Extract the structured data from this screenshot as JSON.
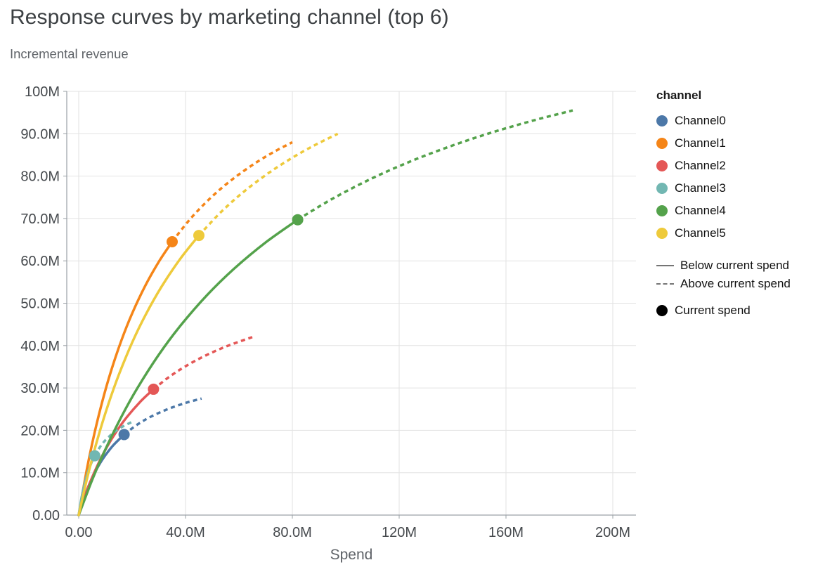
{
  "header": {
    "title": "Response curves by marketing channel (top 6)",
    "subtitle": "Incremental revenue"
  },
  "legend": {
    "header": "channel",
    "channels": [
      {
        "label": "Channel0",
        "color": "#4c78a8"
      },
      {
        "label": "Channel1",
        "color": "#f58518"
      },
      {
        "label": "Channel2",
        "color": "#e45756"
      },
      {
        "label": "Channel3",
        "color": "#72b7b2"
      },
      {
        "label": "Channel4",
        "color": "#54a24b"
      },
      {
        "label": "Channel5",
        "color": "#eeca3b"
      }
    ],
    "line_styles": [
      {
        "label": "Below current spend",
        "dash": "solid"
      },
      {
        "label": "Above current spend",
        "dash": "dashed"
      }
    ],
    "point_marker": {
      "label": "Current spend",
      "color": "#000000"
    }
  },
  "style": {
    "grid_color": "#e2e2e2",
    "axis_color": "#9aa0a6",
    "tick_label_color": "#45494d",
    "axis_title_color": "#5f6368"
  },
  "chart_data": {
    "type": "line",
    "title": "Response curves by marketing channel (top 6)",
    "subtitle": "Incremental revenue",
    "xlabel": "Spend",
    "ylabel": "Incremental revenue",
    "units": "millions",
    "xlim": [
      0,
      200
    ],
    "ylim": [
      0,
      100
    ],
    "grid": true,
    "legend_position": "right",
    "x_ticks": [
      {
        "value": 0,
        "label": "0.00"
      },
      {
        "value": 40,
        "label": "40.0M"
      },
      {
        "value": 80,
        "label": "80.0M"
      },
      {
        "value": 120,
        "label": "120M"
      },
      {
        "value": 160,
        "label": "160M"
      },
      {
        "value": 200,
        "label": "200M"
      }
    ],
    "y_ticks": [
      {
        "value": 0,
        "label": "0.00"
      },
      {
        "value": 10,
        "label": "10.0M"
      },
      {
        "value": 20,
        "label": "20.0M"
      },
      {
        "value": 30,
        "label": "30.0M"
      },
      {
        "value": 40,
        "label": "40.0M"
      },
      {
        "value": 50,
        "label": "50.0M"
      },
      {
        "value": 60,
        "label": "60.0M"
      },
      {
        "value": 70,
        "label": "70.0M"
      },
      {
        "value": 80,
        "label": "80.0M"
      },
      {
        "value": 90,
        "label": "90.0M"
      },
      {
        "value": 100,
        "label": "100M"
      }
    ],
    "series": [
      {
        "name": "Channel0",
        "color": "#4c78a8",
        "current_spend": 17,
        "current_revenue": 19.0,
        "x": [
          0,
          2,
          4,
          6,
          8,
          10,
          13,
          17,
          22,
          27,
          33,
          40,
          46
        ],
        "y": [
          0,
          4.06,
          7.33,
          10.0,
          12.25,
          14.14,
          16.51,
          19.0,
          21.38,
          23.21,
          24.92,
          26.46,
          27.5
        ]
      },
      {
        "name": "Channel1",
        "color": "#f58518",
        "current_spend": 35,
        "current_revenue": 64.51,
        "x": [
          0,
          3,
          6,
          9,
          12,
          16,
          20,
          25,
          30,
          35,
          42,
          50,
          58,
          66,
          73,
          80
        ],
        "y": [
          0,
          10.64,
          19.58,
          27.2,
          33.78,
          41.25,
          47.57,
          54.22,
          59.78,
          64.51,
          70.05,
          75.22,
          79.46,
          83.01,
          85.68,
          88.0
        ]
      },
      {
        "name": "Channel2",
        "color": "#e45756",
        "current_spend": 28,
        "current_revenue": 29.7,
        "x": [
          0,
          3,
          6,
          10,
          14,
          18,
          23,
          28,
          34,
          40,
          47,
          55,
          65
        ],
        "y": [
          0,
          5.62,
          10.29,
          15.42,
          19.61,
          23.1,
          26.71,
          29.7,
          32.67,
          35.12,
          37.5,
          39.74,
          42.0
        ]
      },
      {
        "name": "Channel3",
        "color": "#72b7b2",
        "current_spend": 6,
        "current_revenue": 14.0,
        "x": [
          0,
          1,
          2,
          3,
          4,
          5,
          6,
          8,
          10,
          13,
          16,
          20
        ],
        "y": [
          0,
          3.89,
          6.86,
          9.21,
          11.11,
          12.68,
          14.0,
          16.09,
          17.67,
          19.44,
          20.73,
          22.0
        ]
      },
      {
        "name": "Channel4",
        "color": "#54a24b",
        "current_spend": 82,
        "current_revenue": 69.7,
        "x": [
          0,
          5,
          10,
          16,
          22,
          30,
          38,
          48,
          58,
          70,
          82,
          95,
          110,
          125,
          140,
          155,
          170,
          185
        ],
        "y": [
          0,
          8.23,
          15.51,
          23.22,
          30.0,
          37.86,
          44.62,
          51.87,
          58.04,
          64.34,
          69.7,
          74.65,
          79.52,
          83.66,
          87.23,
          90.34,
          93.08,
          95.5
        ]
      },
      {
        "name": "Channel5",
        "color": "#eeca3b",
        "current_spend": 45,
        "current_revenue": 65.99,
        "x": [
          0,
          3,
          7,
          11,
          15,
          20,
          25,
          31,
          38,
          45,
          53,
          61,
          70,
          79,
          88,
          97
        ],
        "y": [
          0,
          8.29,
          17.83,
          26.0,
          33.08,
          40.69,
          47.2,
          53.88,
          60.45,
          65.99,
          71.34,
          75.89,
          80.24,
          83.96,
          87.18,
          89.98
        ]
      }
    ]
  }
}
